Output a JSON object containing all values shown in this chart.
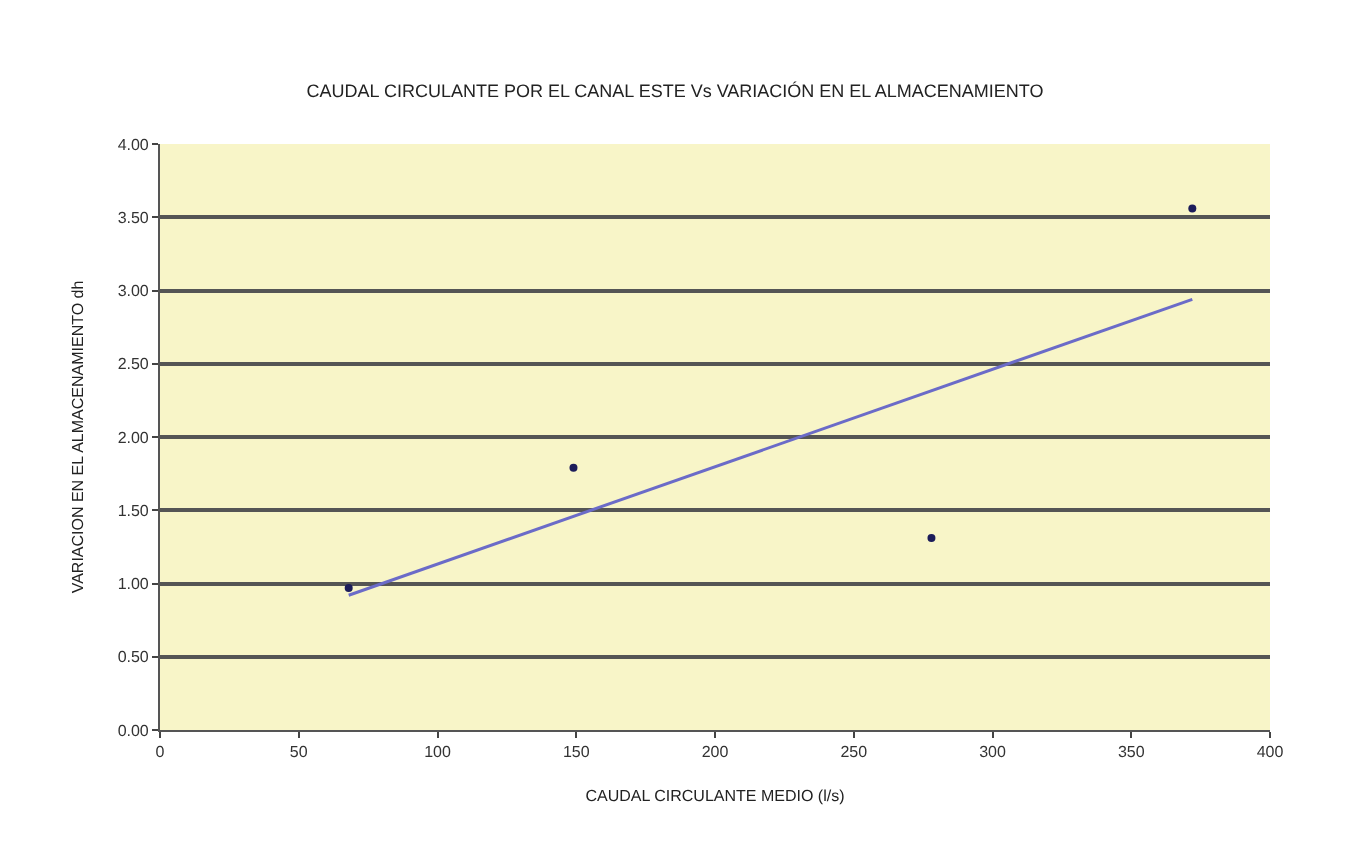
{
  "chart_data": {
    "type": "scatter",
    "title": "CAUDAL CIRCULANTE POR EL CANAL ESTE Vs VARIACIÓN EN EL ALMACENAMIENTO",
    "xlabel": "CAUDAL CIRCULANTE MEDIO (l/s)",
    "ylabel": "VARIACION EN EL ALMACENAMIENTO dh",
    "series": [
      {
        "color": "#1c1c5a",
        "x": [
          68,
          149,
          278,
          372
        ],
        "values": [
          0.97,
          1.79,
          1.31,
          3.56
        ],
        "marker": "circle"
      },
      {
        "type": "line",
        "color": "#6b6bc8",
        "x": [
          68,
          372
        ],
        "values": [
          0.92,
          2.94
        ],
        "marker": "none"
      }
    ],
    "xlim": [
      0,
      400
    ],
    "xticks": [
      0,
      50,
      100,
      150,
      200,
      250,
      300,
      350,
      400
    ],
    "ylim": [
      0,
      4
    ],
    "yticks": [
      {
        "value": 0,
        "label": "0.00"
      },
      {
        "value": 0.5,
        "label": "0.50"
      },
      {
        "value": 1,
        "label": "1.00"
      },
      {
        "value": 1.5,
        "label": "1.50"
      },
      {
        "value": 2,
        "label": "2.00"
      },
      {
        "value": 2.5,
        "label": "2.50"
      },
      {
        "value": 3,
        "label": "3.00"
      },
      {
        "value": 3.5,
        "label": "3.50"
      },
      {
        "value": 4,
        "label": "4.00"
      }
    ],
    "grid": "y"
  }
}
